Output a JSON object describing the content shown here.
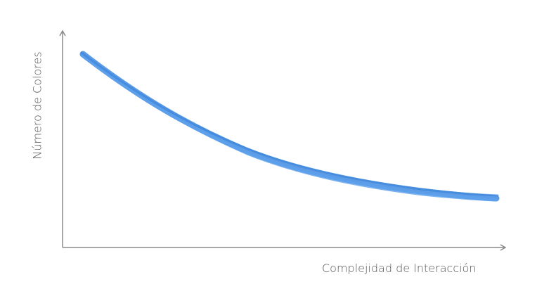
{
  "diagram": {
    "y_axis_label": "Número de Colores",
    "x_axis_label": "Complejidad de Interacción",
    "curve_color": "#4a90e2",
    "axis_color": "#8a8a8a",
    "trend": "decreasing"
  }
}
